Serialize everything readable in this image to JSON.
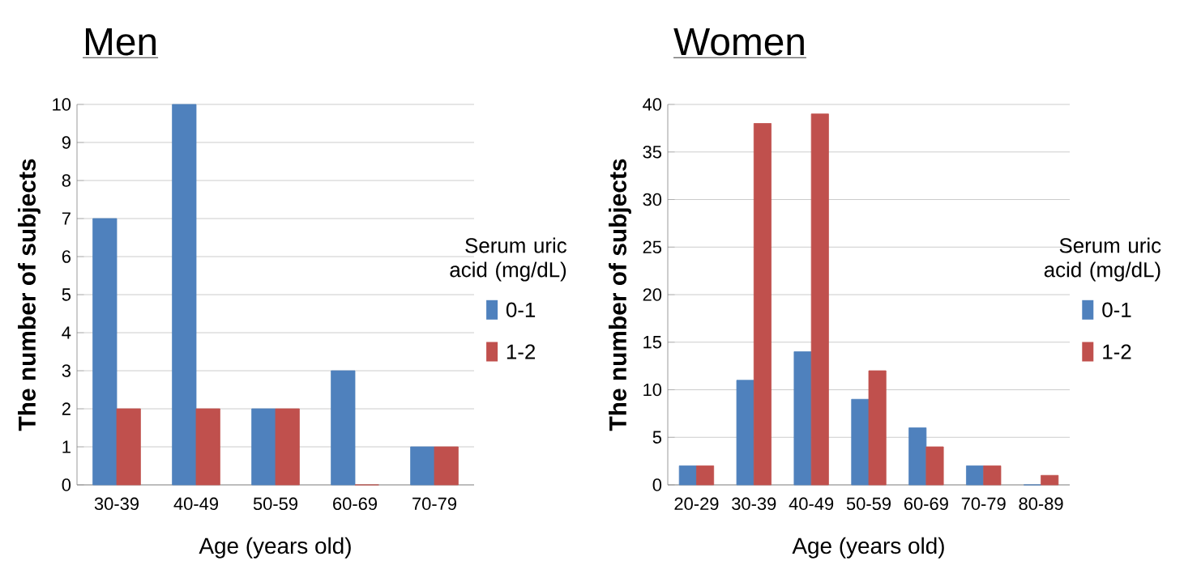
{
  "chart_data": [
    {
      "type": "bar",
      "title": "Men",
      "xlabel": "Age  (years old)",
      "ylabel": "The number of subjects",
      "legend_title": "Serum uric acid (mg/dL)",
      "categories": [
        "30-39",
        "40-49",
        "50-59",
        "60-69",
        "70-79"
      ],
      "series": [
        {
          "name": "0-1",
          "color": "#4f81bd",
          "values": [
            7,
            10,
            2,
            3,
            1
          ]
        },
        {
          "name": "1-2",
          "color": "#c0504d",
          "values": [
            2,
            2,
            2,
            0,
            1
          ]
        }
      ],
      "ylim": [
        0,
        10
      ],
      "yticks": [
        0,
        1,
        2,
        3,
        4,
        5,
        6,
        7,
        8,
        9,
        10
      ],
      "grid": "y",
      "legend": "right"
    },
    {
      "type": "bar",
      "title": "Women",
      "xlabel": "Age  (years old)",
      "ylabel": "The number of subjects",
      "legend_title": "Serum uric acid (mg/dL)",
      "categories": [
        "20-29",
        "30-39",
        "40-49",
        "50-59",
        "60-69",
        "70-79",
        "80-89"
      ],
      "series": [
        {
          "name": "0-1",
          "color": "#4f81bd",
          "values": [
            2,
            11,
            14,
            9,
            6,
            2,
            0
          ]
        },
        {
          "name": "1-2",
          "color": "#c0504d",
          "values": [
            2,
            38,
            39,
            12,
            4,
            2,
            1
          ]
        }
      ],
      "ylim": [
        0,
        40
      ],
      "yticks": [
        0,
        5,
        10,
        15,
        20,
        25,
        30,
        35,
        40
      ],
      "grid": "y",
      "legend": "right"
    }
  ]
}
